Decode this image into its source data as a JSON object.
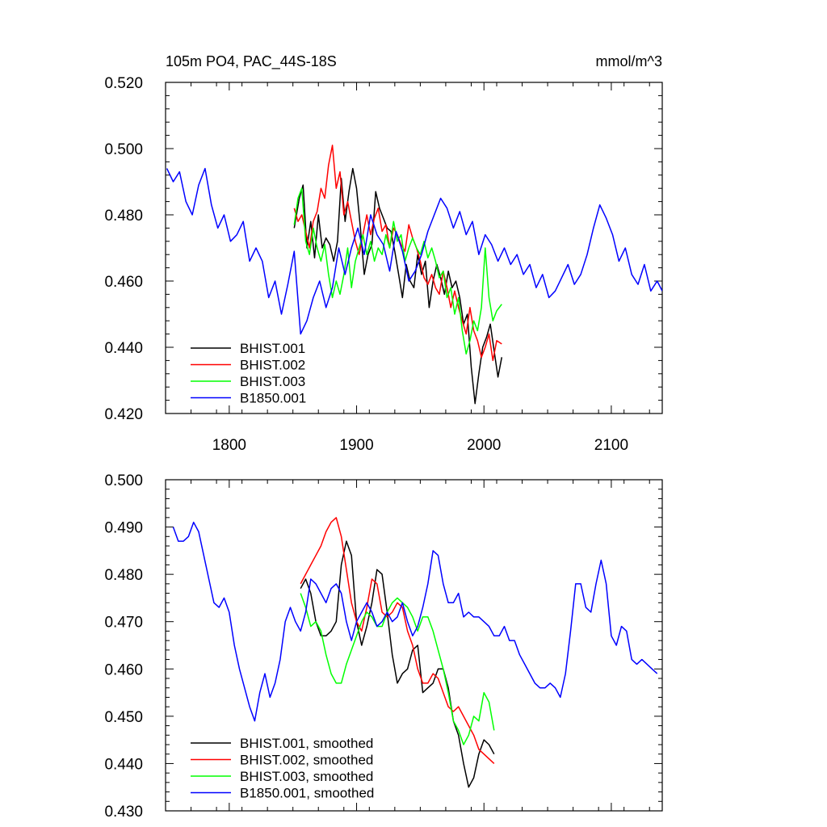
{
  "chart_data": [
    {
      "type": "line",
      "title": "105m PO4, PAC_44S-18S",
      "units": "mmol/m^3",
      "xlim": [
        1750,
        2140
      ],
      "ylim": [
        0.42,
        0.52
      ],
      "xticks": [
        1800,
        1900,
        2000,
        2100
      ],
      "xtick_labels": [
        "1800",
        "1900",
        "2000",
        "2100"
      ],
      "yticks": [
        0.42,
        0.44,
        0.46,
        0.48,
        0.5,
        0.52
      ],
      "ytick_labels": [
        "0.420",
        "0.440",
        "0.460",
        "0.480",
        "0.500",
        "0.520"
      ],
      "legend_position": "bottom-left",
      "series": [
        {
          "name": "BHIST.001",
          "color": "#000000",
          "x": [
            1851,
            1855,
            1858,
            1861,
            1864,
            1867,
            1870,
            1873,
            1876,
            1879,
            1882,
            1885,
            1888,
            1891,
            1894,
            1897,
            1900,
            1903,
            1906,
            1909,
            1912,
            1915,
            1918,
            1921,
            1924,
            1927,
            1930,
            1933,
            1936,
            1939,
            1942,
            1945,
            1948,
            1951,
            1954,
            1957,
            1960,
            1963,
            1966,
            1969,
            1972,
            1975,
            1978,
            1981,
            1984,
            1987,
            1990,
            1993,
            1996,
            1999,
            2002,
            2005,
            2008,
            2011,
            2014
          ],
          "values": [
            0.476,
            0.485,
            0.489,
            0.47,
            0.478,
            0.467,
            0.48,
            0.47,
            0.473,
            0.471,
            0.466,
            0.472,
            0.491,
            0.478,
            0.487,
            0.494,
            0.488,
            0.476,
            0.462,
            0.468,
            0.471,
            0.487,
            0.482,
            0.479,
            0.476,
            0.475,
            0.469,
            0.462,
            0.455,
            0.465,
            0.46,
            0.458,
            0.468,
            0.462,
            0.466,
            0.452,
            0.46,
            0.465,
            0.461,
            0.456,
            0.463,
            0.458,
            0.46,
            0.455,
            0.447,
            0.45,
            0.434,
            0.423,
            0.432,
            0.44,
            0.443,
            0.447,
            0.439,
            0.431,
            0.437
          ]
        },
        {
          "name": "BHIST.002",
          "color": "#ff0000",
          "x": [
            1851,
            1854,
            1857,
            1860,
            1863,
            1866,
            1869,
            1872,
            1875,
            1878,
            1881,
            1884,
            1887,
            1890,
            1893,
            1896,
            1899,
            1902,
            1905,
            1908,
            1911,
            1914,
            1917,
            1920,
            1923,
            1926,
            1929,
            1932,
            1935,
            1938,
            1941,
            1944,
            1947,
            1950,
            1953,
            1956,
            1959,
            1962,
            1965,
            1968,
            1971,
            1974,
            1977,
            1980,
            1983,
            1986,
            1989,
            1992,
            1995,
            1998,
            2001,
            2004,
            2007,
            2010,
            2014
          ],
          "values": [
            0.482,
            0.478,
            0.48,
            0.475,
            0.47,
            0.478,
            0.481,
            0.488,
            0.485,
            0.495,
            0.501,
            0.488,
            0.493,
            0.48,
            0.484,
            0.478,
            0.472,
            0.468,
            0.474,
            0.48,
            0.474,
            0.479,
            0.482,
            0.475,
            0.477,
            0.47,
            0.476,
            0.474,
            0.471,
            0.469,
            0.477,
            0.473,
            0.47,
            0.466,
            0.461,
            0.459,
            0.462,
            0.458,
            0.456,
            0.463,
            0.458,
            0.452,
            0.457,
            0.452,
            0.448,
            0.444,
            0.452,
            0.445,
            0.442,
            0.437,
            0.44,
            0.444,
            0.436,
            0.442,
            0.441
          ]
        },
        {
          "name": "BHIST.003",
          "color": "#00ff00",
          "x": [
            1851,
            1854,
            1857,
            1860,
            1863,
            1866,
            1869,
            1872,
            1875,
            1878,
            1881,
            1884,
            1887,
            1890,
            1893,
            1896,
            1899,
            1902,
            1905,
            1908,
            1911,
            1914,
            1917,
            1920,
            1923,
            1926,
            1929,
            1932,
            1935,
            1938,
            1941,
            1944,
            1947,
            1950,
            1953,
            1956,
            1959,
            1962,
            1965,
            1968,
            1971,
            1974,
            1977,
            1980,
            1983,
            1986,
            1989,
            1992,
            1995,
            1998,
            2001,
            2004,
            2007,
            2010,
            2014
          ],
          "values": [
            0.477,
            0.485,
            0.488,
            0.472,
            0.468,
            0.476,
            0.47,
            0.466,
            0.471,
            0.462,
            0.455,
            0.46,
            0.456,
            0.462,
            0.47,
            0.458,
            0.466,
            0.47,
            0.474,
            0.468,
            0.472,
            0.466,
            0.47,
            0.468,
            0.474,
            0.47,
            0.478,
            0.472,
            0.474,
            0.466,
            0.47,
            0.473,
            0.47,
            0.468,
            0.472,
            0.467,
            0.47,
            0.466,
            0.461,
            0.463,
            0.455,
            0.458,
            0.45,
            0.455,
            0.445,
            0.438,
            0.442,
            0.448,
            0.445,
            0.452,
            0.47,
            0.455,
            0.448,
            0.451,
            0.453
          ]
        },
        {
          "name": "B1850.001",
          "color": "#0000ff",
          "x": [
            1751,
            1756,
            1761,
            1766,
            1771,
            1776,
            1781,
            1786,
            1791,
            1796,
            1801,
            1806,
            1811,
            1816,
            1821,
            1826,
            1831,
            1836,
            1841,
            1846,
            1851,
            1856,
            1861,
            1866,
            1871,
            1876,
            1881,
            1886,
            1891,
            1896,
            1901,
            1906,
            1911,
            1916,
            1921,
            1926,
            1931,
            1936,
            1941,
            1946,
            1951,
            1956,
            1961,
            1966,
            1971,
            1976,
            1981,
            1986,
            1991,
            1996,
            2001,
            2006,
            2011,
            2016,
            2021,
            2026,
            2031,
            2036,
            2041,
            2046,
            2051,
            2056,
            2061,
            2066,
            2071,
            2076,
            2081,
            2086,
            2091,
            2096,
            2101,
            2106,
            2111,
            2116,
            2121,
            2126,
            2131,
            2136,
            2140
          ],
          "values": [
            0.494,
            0.49,
            0.493,
            0.484,
            0.48,
            0.489,
            0.494,
            0.483,
            0.476,
            0.48,
            0.472,
            0.474,
            0.478,
            0.466,
            0.47,
            0.466,
            0.455,
            0.46,
            0.45,
            0.459,
            0.469,
            0.444,
            0.448,
            0.455,
            0.46,
            0.452,
            0.458,
            0.47,
            0.462,
            0.47,
            0.476,
            0.468,
            0.48,
            0.474,
            0.471,
            0.463,
            0.475,
            0.469,
            0.46,
            0.463,
            0.468,
            0.475,
            0.48,
            0.485,
            0.482,
            0.476,
            0.481,
            0.474,
            0.478,
            0.468,
            0.474,
            0.471,
            0.466,
            0.47,
            0.465,
            0.468,
            0.462,
            0.465,
            0.458,
            0.462,
            0.455,
            0.457,
            0.461,
            0.465,
            0.459,
            0.462,
            0.468,
            0.476,
            0.483,
            0.479,
            0.474,
            0.466,
            0.47,
            0.462,
            0.459,
            0.465,
            0.457,
            0.46,
            0.457
          ]
        }
      ]
    },
    {
      "type": "line",
      "xlim": [
        1750,
        2140
      ],
      "ylim": [
        0.43,
        0.5
      ],
      "xticks": [
        1800,
        1900,
        2000,
        2100
      ],
      "yticks": [
        0.43,
        0.44,
        0.45,
        0.46,
        0.47,
        0.48,
        0.49,
        0.5
      ],
      "ytick_labels": [
        "0.430",
        "0.440",
        "0.450",
        "0.460",
        "0.470",
        "0.480",
        "0.490",
        "0.500"
      ],
      "legend_position": "bottom-left",
      "series": [
        {
          "name": "BHIST.001, smoothed",
          "color": "#000000",
          "x": [
            1856,
            1860,
            1864,
            1868,
            1872,
            1876,
            1880,
            1884,
            1888,
            1892,
            1896,
            1900,
            1904,
            1908,
            1912,
            1916,
            1920,
            1924,
            1928,
            1932,
            1936,
            1940,
            1944,
            1948,
            1952,
            1956,
            1960,
            1964,
            1968,
            1972,
            1976,
            1980,
            1984,
            1988,
            1992,
            1996,
            2000,
            2004,
            2008
          ],
          "values": [
            0.477,
            0.479,
            0.476,
            0.47,
            0.467,
            0.467,
            0.468,
            0.47,
            0.482,
            0.487,
            0.484,
            0.47,
            0.465,
            0.469,
            0.474,
            0.481,
            0.48,
            0.472,
            0.463,
            0.457,
            0.459,
            0.46,
            0.464,
            0.465,
            0.455,
            0.456,
            0.457,
            0.46,
            0.46,
            0.456,
            0.449,
            0.446,
            0.44,
            0.435,
            0.437,
            0.442,
            0.445,
            0.444,
            0.442
          ]
        },
        {
          "name": "BHIST.002, smoothed",
          "color": "#ff0000",
          "x": [
            1856,
            1860,
            1864,
            1868,
            1872,
            1876,
            1880,
            1884,
            1888,
            1892,
            1896,
            1900,
            1904,
            1908,
            1912,
            1916,
            1920,
            1924,
            1928,
            1932,
            1936,
            1940,
            1944,
            1948,
            1952,
            1956,
            1960,
            1964,
            1968,
            1972,
            1976,
            1980,
            1984,
            1988,
            1992,
            1996,
            2000,
            2004,
            2008
          ],
          "values": [
            0.478,
            0.48,
            0.482,
            0.484,
            0.486,
            0.489,
            0.491,
            0.492,
            0.488,
            0.481,
            0.474,
            0.47,
            0.468,
            0.473,
            0.479,
            0.478,
            0.472,
            0.471,
            0.472,
            0.474,
            0.473,
            0.468,
            0.465,
            0.46,
            0.457,
            0.457,
            0.459,
            0.458,
            0.455,
            0.452,
            0.451,
            0.452,
            0.45,
            0.448,
            0.446,
            0.443,
            0.442,
            0.441,
            0.44
          ]
        },
        {
          "name": "BHIST.003, smoothed",
          "color": "#00ff00",
          "x": [
            1856,
            1860,
            1864,
            1868,
            1872,
            1876,
            1880,
            1884,
            1888,
            1892,
            1896,
            1900,
            1904,
            1908,
            1912,
            1916,
            1920,
            1924,
            1928,
            1932,
            1936,
            1940,
            1944,
            1948,
            1952,
            1956,
            1960,
            1964,
            1968,
            1972,
            1976,
            1980,
            1984,
            1988,
            1992,
            1996,
            2000,
            2004,
            2008
          ],
          "values": [
            0.476,
            0.473,
            0.469,
            0.47,
            0.468,
            0.463,
            0.459,
            0.457,
            0.457,
            0.461,
            0.464,
            0.467,
            0.47,
            0.472,
            0.471,
            0.469,
            0.469,
            0.472,
            0.474,
            0.475,
            0.474,
            0.473,
            0.471,
            0.468,
            0.471,
            0.471,
            0.468,
            0.464,
            0.46,
            0.455,
            0.449,
            0.447,
            0.444,
            0.446,
            0.45,
            0.449,
            0.455,
            0.453,
            0.447
          ]
        },
        {
          "name": "B1850.001, smoothed",
          "color": "#0000ff",
          "x": [
            1756,
            1760,
            1764,
            1768,
            1772,
            1776,
            1780,
            1784,
            1788,
            1792,
            1796,
            1800,
            1804,
            1808,
            1812,
            1816,
            1820,
            1824,
            1828,
            1832,
            1836,
            1840,
            1844,
            1848,
            1852,
            1856,
            1860,
            1864,
            1868,
            1872,
            1876,
            1880,
            1884,
            1888,
            1892,
            1896,
            1900,
            1904,
            1908,
            1912,
            1916,
            1920,
            1924,
            1928,
            1932,
            1936,
            1940,
            1944,
            1948,
            1952,
            1956,
            1960,
            1964,
            1968,
            1972,
            1976,
            1980,
            1984,
            1988,
            1992,
            1996,
            2000,
            2004,
            2008,
            2012,
            2016,
            2020,
            2024,
            2028,
            2032,
            2036,
            2040,
            2044,
            2048,
            2052,
            2056,
            2060,
            2064,
            2068,
            2072,
            2076,
            2080,
            2084,
            2088,
            2092,
            2096,
            2100,
            2104,
            2108,
            2112,
            2116,
            2120,
            2124,
            2128,
            2132,
            2136
          ],
          "values": [
            0.49,
            0.487,
            0.487,
            0.488,
            0.491,
            0.489,
            0.484,
            0.479,
            0.474,
            0.473,
            0.475,
            0.472,
            0.465,
            0.46,
            0.456,
            0.452,
            0.449,
            0.455,
            0.459,
            0.454,
            0.457,
            0.462,
            0.47,
            0.473,
            0.47,
            0.468,
            0.472,
            0.479,
            0.478,
            0.476,
            0.474,
            0.477,
            0.478,
            0.476,
            0.47,
            0.466,
            0.47,
            0.472,
            0.474,
            0.472,
            0.469,
            0.47,
            0.472,
            0.47,
            0.471,
            0.474,
            0.47,
            0.467,
            0.469,
            0.473,
            0.478,
            0.485,
            0.484,
            0.478,
            0.474,
            0.474,
            0.476,
            0.471,
            0.472,
            0.471,
            0.471,
            0.47,
            0.469,
            0.467,
            0.467,
            0.469,
            0.466,
            0.466,
            0.463,
            0.461,
            0.459,
            0.457,
            0.456,
            0.456,
            0.457,
            0.456,
            0.454,
            0.459,
            0.468,
            0.478,
            0.478,
            0.473,
            0.472,
            0.478,
            0.483,
            0.478,
            0.467,
            0.465,
            0.469,
            0.468,
            0.462,
            0.461,
            0.462,
            0.461,
            0.46,
            0.459
          ]
        }
      ]
    }
  ]
}
